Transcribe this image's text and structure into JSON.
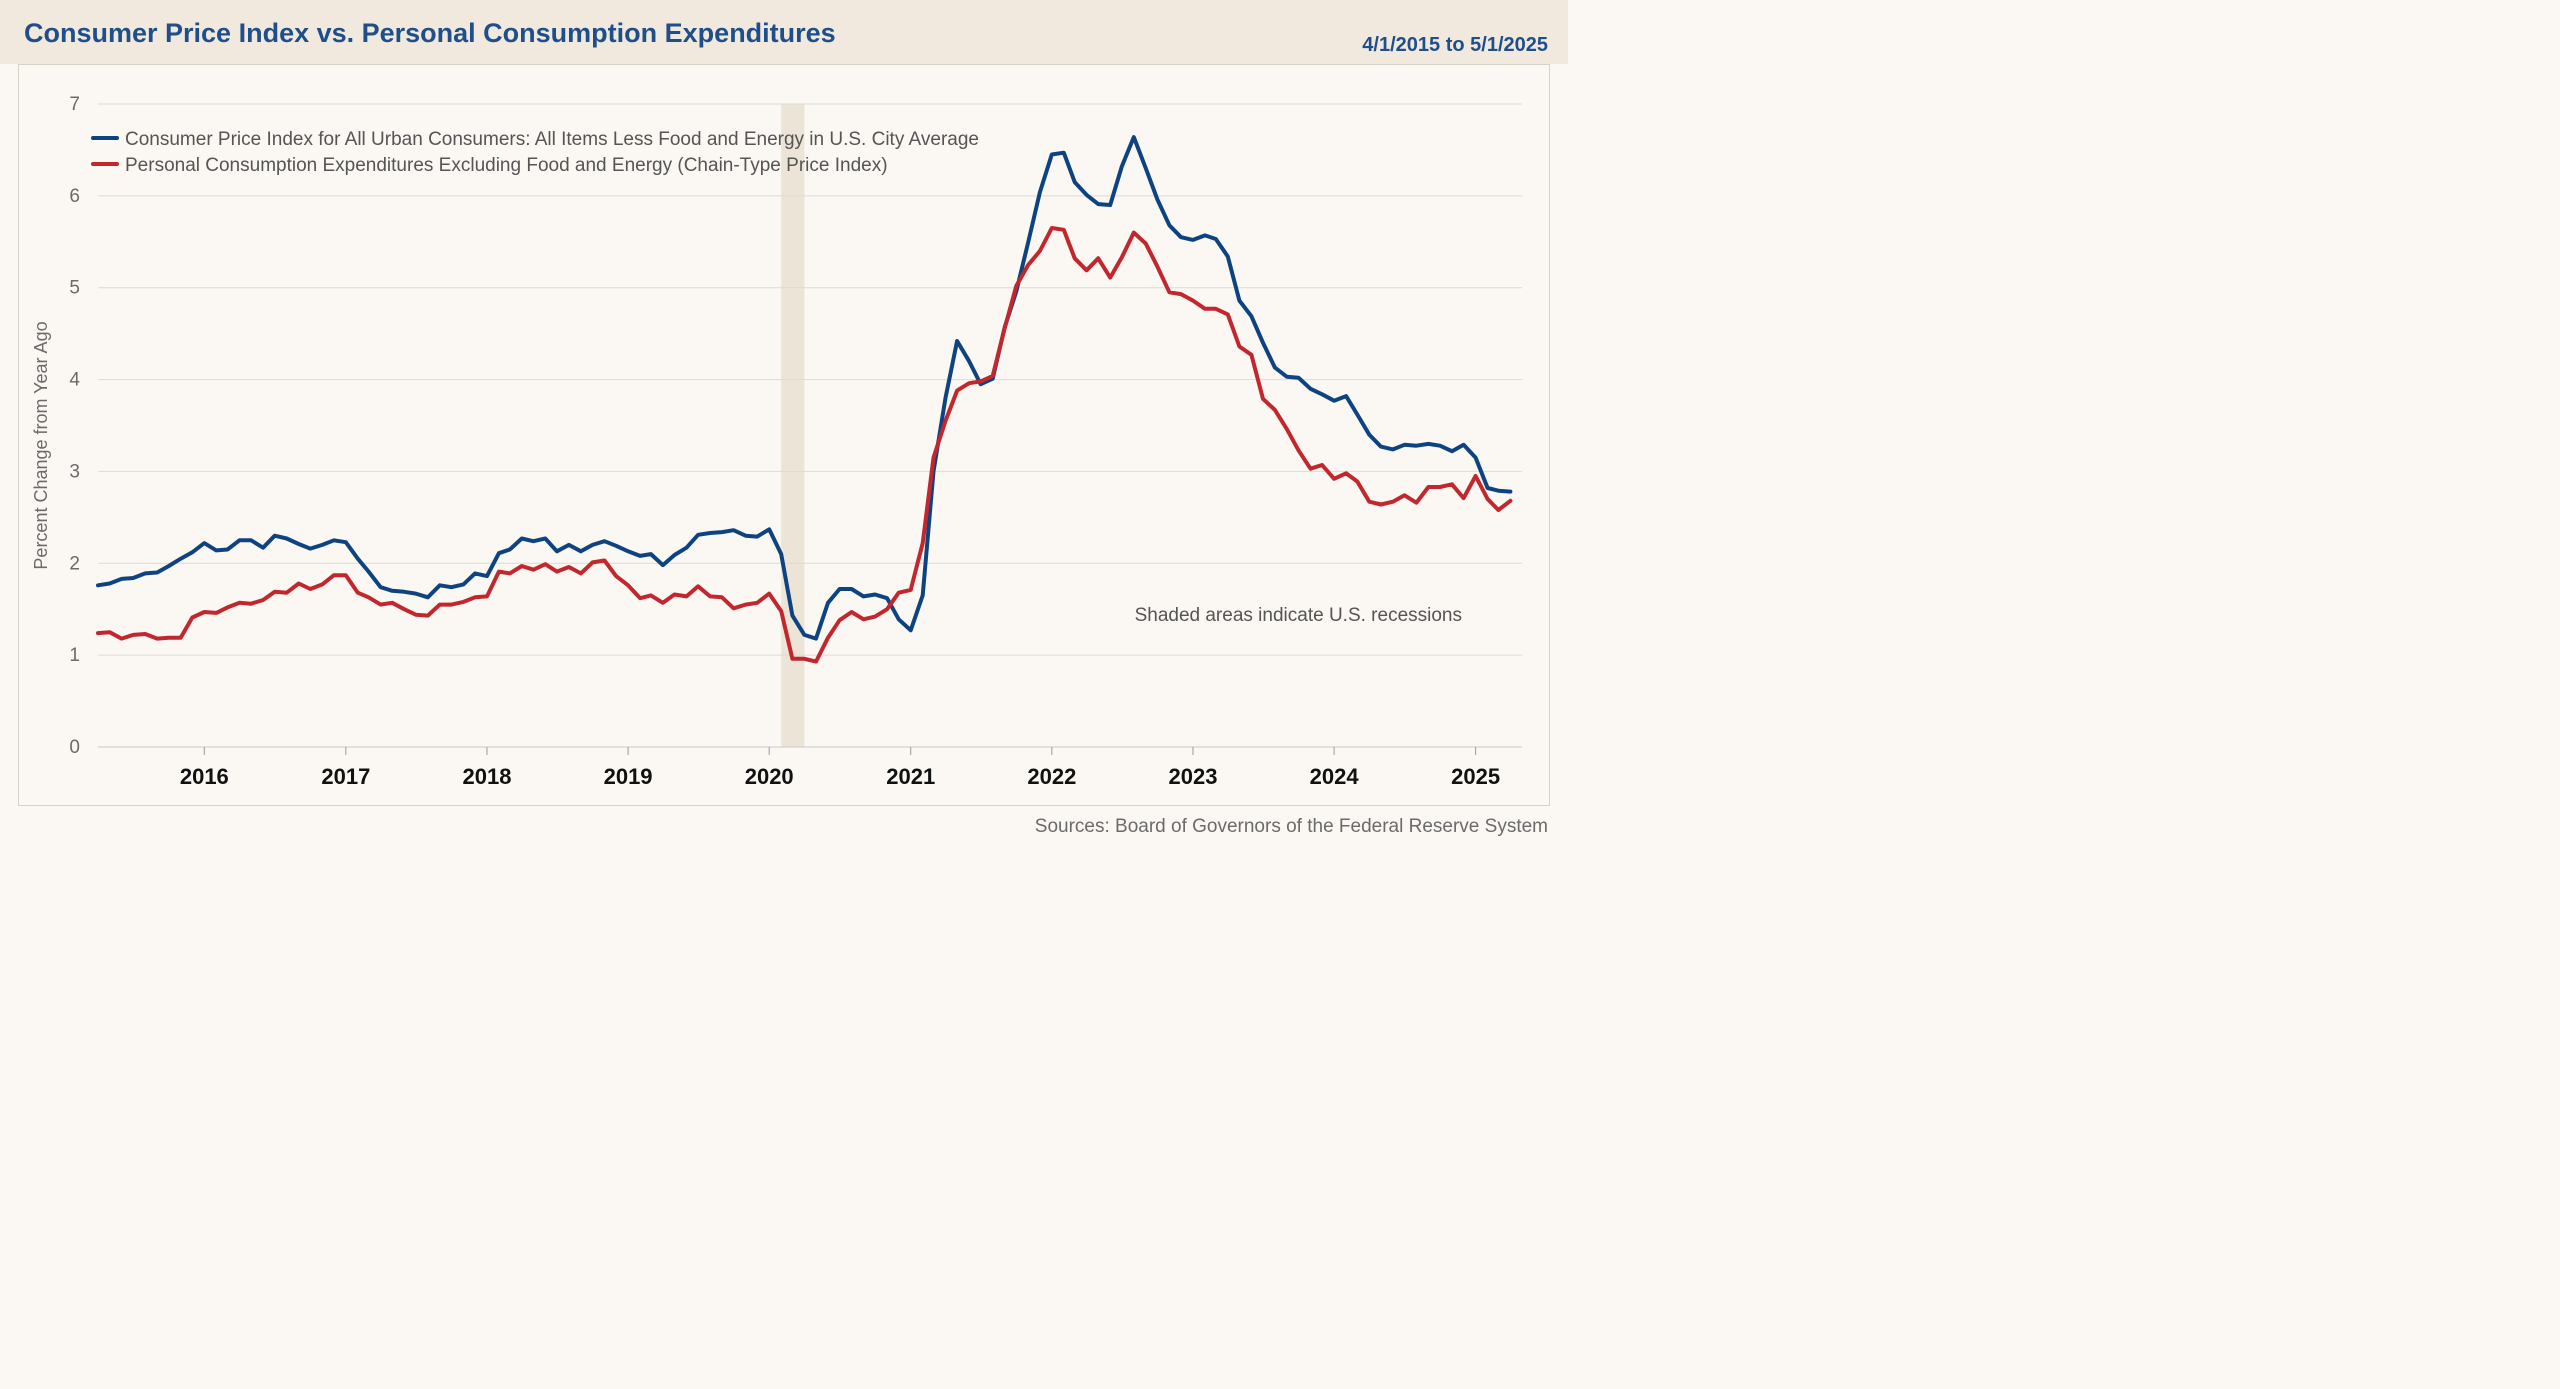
{
  "header": {
    "title": "Consumer Price Index vs. Personal Consumption Expenditures",
    "date_range": "4/1/2015 to 5/1/2025"
  },
  "footer": {
    "source": "Sources: Board of Governors of the Federal Reserve System"
  },
  "chart_data": {
    "type": "line",
    "ylabel": "Percent Change from Year Ago",
    "ylim": [
      0,
      7
    ],
    "yticks": [
      "0",
      "1",
      "2",
      "3",
      "4",
      "5",
      "6",
      "7"
    ],
    "xlim": [
      "2015-04-01",
      "2025-05-01"
    ],
    "xticks": [
      "2016",
      "2017",
      "2018",
      "2019",
      "2020",
      "2021",
      "2022",
      "2023",
      "2024",
      "2025"
    ],
    "grid": true,
    "legend_position": "top-left",
    "annotation": "Shaded areas indicate U.S. recessions",
    "recession": {
      "start": "2020-02-01",
      "end": "2020-04-01"
    },
    "start_month": "2015-04",
    "series": [
      {
        "name": "Consumer Price Index for All Urban Consumers: All Items Less Food and Energy in U.S. City Average",
        "color": "#0e4382",
        "values": [
          1.76,
          1.78,
          1.83,
          1.84,
          1.89,
          1.9,
          1.97,
          2.05,
          2.12,
          2.22,
          2.14,
          2.15,
          2.25,
          2.25,
          2.17,
          2.3,
          2.27,
          2.21,
          2.16,
          2.2,
          2.25,
          2.23,
          2.05,
          1.91,
          1.74,
          1.7,
          1.69,
          1.67,
          1.63,
          1.76,
          1.74,
          1.77,
          1.89,
          1.86,
          2.11,
          2.15,
          2.27,
          2.24,
          2.27,
          2.13,
          2.2,
          2.13,
          2.2,
          2.24,
          2.19,
          2.13,
          2.08,
          2.1,
          1.98,
          2.09,
          2.17,
          2.31,
          2.33,
          2.34,
          2.36,
          2.3,
          2.29,
          2.37,
          2.1,
          1.43,
          1.22,
          1.18,
          1.57,
          1.72,
          1.72,
          1.64,
          1.66,
          1.62,
          1.39,
          1.27,
          1.65,
          3.0,
          3.8,
          4.42,
          4.2,
          3.95,
          4.01,
          4.57,
          4.96,
          5.5,
          6.04,
          6.45,
          6.47,
          6.15,
          6.01,
          5.91,
          5.9,
          6.32,
          6.64,
          6.3,
          5.96,
          5.68,
          5.55,
          5.52,
          5.57,
          5.53,
          5.34,
          4.86,
          4.69,
          4.4,
          4.13,
          4.03,
          4.02,
          3.9,
          3.84,
          3.77,
          3.82,
          3.62,
          3.4,
          3.27,
          3.24,
          3.29,
          3.28,
          3.3,
          3.28,
          3.22,
          3.29,
          3.15,
          2.82,
          2.79,
          2.78
        ]
      },
      {
        "name": "Personal Consumption Expenditures Excluding Food and Energy (Chain-Type Price Index)",
        "color": "#c1272d",
        "values": [
          1.24,
          1.25,
          1.18,
          1.22,
          1.23,
          1.18,
          1.19,
          1.19,
          1.41,
          1.47,
          1.46,
          1.52,
          1.57,
          1.56,
          1.6,
          1.69,
          1.68,
          1.78,
          1.72,
          1.77,
          1.87,
          1.87,
          1.68,
          1.63,
          1.55,
          1.57,
          1.5,
          1.44,
          1.43,
          1.55,
          1.55,
          1.58,
          1.63,
          1.64,
          1.91,
          1.89,
          1.97,
          1.93,
          1.99,
          1.91,
          1.96,
          1.89,
          2.01,
          2.03,
          1.86,
          1.76,
          1.62,
          1.65,
          1.57,
          1.66,
          1.64,
          1.75,
          1.64,
          1.63,
          1.51,
          1.55,
          1.57,
          1.67,
          1.48,
          0.96,
          0.96,
          0.93,
          1.19,
          1.38,
          1.47,
          1.39,
          1.42,
          1.5,
          1.68,
          1.71,
          2.22,
          3.15,
          3.55,
          3.88,
          3.96,
          3.98,
          4.04,
          4.56,
          5.02,
          5.25,
          5.4,
          5.65,
          5.63,
          5.32,
          5.19,
          5.32,
          5.11,
          5.33,
          5.6,
          5.48,
          5.23,
          4.95,
          4.93,
          4.86,
          4.77,
          4.77,
          4.71,
          4.36,
          4.27,
          3.79,
          3.67,
          3.46,
          3.23,
          3.03,
          3.07,
          2.92,
          2.98,
          2.89,
          2.67,
          2.64,
          2.67,
          2.74,
          2.66,
          2.83,
          2.83,
          2.86,
          2.71,
          2.95,
          2.7,
          2.58,
          2.68
        ]
      }
    ]
  }
}
